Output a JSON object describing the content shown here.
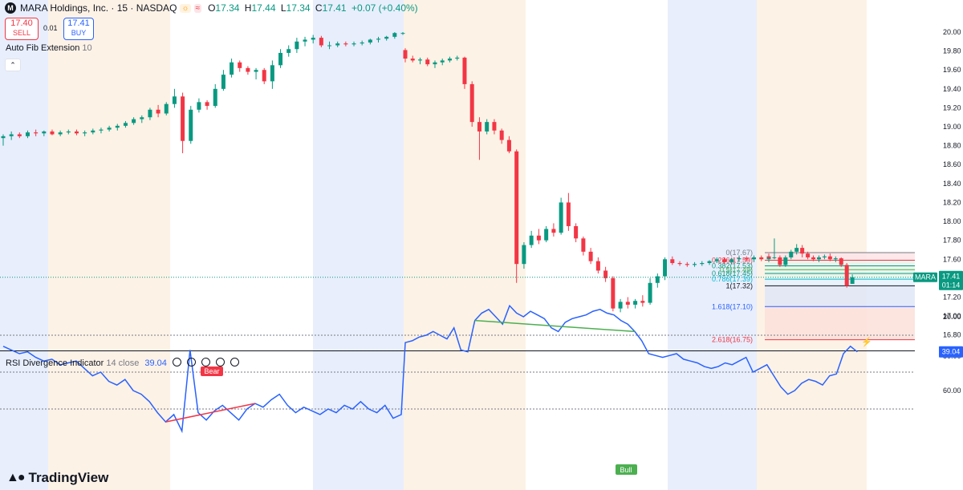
{
  "header": {
    "symbol_icon": "M",
    "symbol_title": "MARA Holdings, Inc. · 15 · NASDAQ",
    "icons": [
      "sun-icon",
      "wave-icon"
    ],
    "open_label": "O",
    "open": "17.34",
    "high_label": "H",
    "high": "17.44",
    "low_label": "L",
    "low": "17.34",
    "close_label": "C",
    "close": "17.41",
    "change": "+0.07 (+0.40%)"
  },
  "trade": {
    "sell_price": "17.40",
    "sell_label": "SELL",
    "spread": "0.01",
    "buy_price": "17.41",
    "buy_label": "BUY"
  },
  "indicators": {
    "fib_name": "Auto Fib Extension",
    "fib_param": "10",
    "rsi_name": "RSI Divergence Indicator",
    "rsi_params": "14 close",
    "rsi_value": "39.04"
  },
  "price_axis": [
    "20.00",
    "19.80",
    "19.60",
    "19.40",
    "19.20",
    "19.00",
    "18.80",
    "18.60",
    "18.40",
    "18.20",
    "18.00",
    "17.80",
    "17.60",
    "17.20",
    "17.00",
    "16.80"
  ],
  "rsi_axis": [
    "80.00",
    "60.00",
    "20.00"
  ],
  "price_tag": {
    "symbol": "MARA",
    "price": "17.41",
    "countdown": "01:14"
  },
  "rsi_tag": "39.04",
  "fib_labels": [
    "0(17.67)",
    "0.236(17.59)",
    "0.382(17.53)",
    "0.5(17.49)",
    "0.618(17.45)",
    "0.786(17.39)",
    "1(17.32)",
    "1.618(17.10)",
    "2.618(16.75)"
  ],
  "divergence": {
    "bear": "Bear",
    "bull": "Bull"
  },
  "branding": {
    "name": "TradingView"
  },
  "colors": {
    "up": "#089981",
    "down": "#f23645",
    "rsi_line": "#2962ff",
    "bull": "#4caf50",
    "bear": "#f23645"
  },
  "chart_data": {
    "type": "candlestick",
    "symbol": "MARA",
    "interval": "15",
    "ylim": [
      16.65,
      20.1
    ],
    "rsi_ylim": [
      10,
      86
    ],
    "candles": [
      [
        18.88,
        18.92,
        18.8,
        18.9
      ],
      [
        18.9,
        18.95,
        18.86,
        18.92
      ],
      [
        18.92,
        18.94,
        18.88,
        18.9
      ],
      [
        18.9,
        18.96,
        18.88,
        18.94
      ],
      [
        18.94,
        18.97,
        18.9,
        18.93
      ],
      [
        18.93,
        18.96,
        18.9,
        18.95
      ],
      [
        18.95,
        18.97,
        18.91,
        18.92
      ],
      [
        18.92,
        18.96,
        18.9,
        18.94
      ],
      [
        18.94,
        18.97,
        18.92,
        18.95
      ],
      [
        18.95,
        18.97,
        18.91,
        18.93
      ],
      [
        18.93,
        18.96,
        18.9,
        18.94
      ],
      [
        18.94,
        18.98,
        18.92,
        18.96
      ],
      [
        18.96,
        18.99,
        18.93,
        18.97
      ],
      [
        18.97,
        19.01,
        18.95,
        18.99
      ],
      [
        18.99,
        19.03,
        18.96,
        19.01
      ],
      [
        19.01,
        19.06,
        18.99,
        19.04
      ],
      [
        19.04,
        19.1,
        19.02,
        19.08
      ],
      [
        19.08,
        19.12,
        19.04,
        19.1
      ],
      [
        19.1,
        19.2,
        19.07,
        19.18
      ],
      [
        19.18,
        19.23,
        19.1,
        19.14
      ],
      [
        19.14,
        19.26,
        19.12,
        19.24
      ],
      [
        19.24,
        19.4,
        19.2,
        19.32
      ],
      [
        19.32,
        19.36,
        18.72,
        18.85
      ],
      [
        18.85,
        19.22,
        18.82,
        19.18
      ],
      [
        19.18,
        19.3,
        19.15,
        19.26
      ],
      [
        19.26,
        19.28,
        19.18,
        19.22
      ],
      [
        19.22,
        19.45,
        19.2,
        19.4
      ],
      [
        19.4,
        19.6,
        19.38,
        19.55
      ],
      [
        19.55,
        19.72,
        19.52,
        19.68
      ],
      [
        19.68,
        19.7,
        19.58,
        19.62
      ],
      [
        19.62,
        19.64,
        19.55,
        19.58
      ],
      [
        19.58,
        19.62,
        19.5,
        19.6
      ],
      [
        19.6,
        19.62,
        19.45,
        19.48
      ],
      [
        19.48,
        19.7,
        19.4,
        19.65
      ],
      [
        19.65,
        19.82,
        19.62,
        19.78
      ],
      [
        19.78,
        19.86,
        19.74,
        19.82
      ],
      [
        19.82,
        19.94,
        19.78,
        19.9
      ],
      [
        19.9,
        19.95,
        19.85,
        19.92
      ],
      [
        19.92,
        19.97,
        19.88,
        19.94
      ],
      [
        19.94,
        19.96,
        19.84,
        19.86
      ],
      [
        19.86,
        19.9,
        19.82,
        19.86
      ],
      [
        19.86,
        19.9,
        19.84,
        19.88
      ],
      [
        19.88,
        19.9,
        19.85,
        19.87
      ],
      [
        19.87,
        19.9,
        19.85,
        19.88
      ],
      [
        19.88,
        19.91,
        19.86,
        19.89
      ],
      [
        19.89,
        19.93,
        19.87,
        19.92
      ],
      [
        19.92,
        19.95,
        19.89,
        19.93
      ],
      [
        19.93,
        19.96,
        19.91,
        19.95
      ],
      [
        19.95,
        20.0,
        19.93,
        19.99
      ],
      [
        19.99,
        20.0,
        19.97,
        19.99
      ],
      [
        19.81,
        19.83,
        19.68,
        19.72
      ],
      [
        19.72,
        19.75,
        19.68,
        19.7
      ],
      [
        19.7,
        19.73,
        19.66,
        19.71
      ],
      [
        19.71,
        19.73,
        19.64,
        19.66
      ],
      [
        19.66,
        19.7,
        19.62,
        19.68
      ],
      [
        19.68,
        19.72,
        19.65,
        19.7
      ],
      [
        19.7,
        19.74,
        19.68,
        19.72
      ],
      [
        19.72,
        19.75,
        19.7,
        19.73
      ],
      [
        19.73,
        19.74,
        19.4,
        19.45
      ],
      [
        19.45,
        19.48,
        19.0,
        19.05
      ],
      [
        19.05,
        19.1,
        18.65,
        18.95
      ],
      [
        18.95,
        19.08,
        18.92,
        19.05
      ],
      [
        19.05,
        19.08,
        18.92,
        18.96
      ],
      [
        18.96,
        18.98,
        18.82,
        18.86
      ],
      [
        18.86,
        18.9,
        18.72,
        18.74
      ],
      [
        18.74,
        18.76,
        17.35,
        17.55
      ],
      [
        17.55,
        17.78,
        17.5,
        17.75
      ],
      [
        17.75,
        17.9,
        17.72,
        17.85
      ],
      [
        17.85,
        17.92,
        17.76,
        17.8
      ],
      [
        17.8,
        17.95,
        17.78,
        17.92
      ],
      [
        17.92,
        17.98,
        17.84,
        17.88
      ],
      [
        17.88,
        18.25,
        17.86,
        18.2
      ],
      [
        18.2,
        18.3,
        17.9,
        17.95
      ],
      [
        17.95,
        17.98,
        17.78,
        17.82
      ],
      [
        17.82,
        17.84,
        17.64,
        17.68
      ],
      [
        17.68,
        17.72,
        17.55,
        17.58
      ],
      [
        17.58,
        17.62,
        17.45,
        17.48
      ],
      [
        17.48,
        17.52,
        17.36,
        17.4
      ],
      [
        17.4,
        17.42,
        17.05,
        17.08
      ],
      [
        17.08,
        17.18,
        17.04,
        17.15
      ],
      [
        17.15,
        17.2,
        17.08,
        17.12
      ],
      [
        17.12,
        17.18,
        17.08,
        17.16
      ],
      [
        17.16,
        17.22,
        17.1,
        17.14
      ],
      [
        17.14,
        17.4,
        17.12,
        17.35
      ],
      [
        17.35,
        17.45,
        17.3,
        17.42
      ],
      [
        17.42,
        17.62,
        17.38,
        17.6
      ],
      [
        17.6,
        17.63,
        17.54,
        17.56
      ],
      [
        17.56,
        17.58,
        17.53,
        17.55
      ],
      [
        17.55,
        17.57,
        17.52,
        17.54
      ],
      [
        17.54,
        17.57,
        17.52,
        17.55
      ],
      [
        17.55,
        17.58,
        17.53,
        17.56
      ],
      [
        17.56,
        17.59,
        17.54,
        17.58
      ],
      [
        17.58,
        17.62,
        17.56,
        17.6
      ],
      [
        17.6,
        17.62,
        17.55,
        17.57
      ],
      [
        17.57,
        17.61,
        17.55,
        17.6
      ],
      [
        17.6,
        17.64,
        17.57,
        17.61
      ],
      [
        17.61,
        17.63,
        17.58,
        17.6
      ],
      [
        17.6,
        17.64,
        17.57,
        17.62
      ],
      [
        17.62,
        17.64,
        17.58,
        17.6
      ],
      [
        17.6,
        17.65,
        17.57,
        17.63
      ],
      [
        17.63,
        17.66,
        17.6,
        17.62
      ],
      [
        17.62,
        17.82,
        17.6,
        17.62
      ],
      [
        17.62,
        17.64,
        17.52,
        17.54
      ],
      [
        17.54,
        17.64,
        17.52,
        17.62
      ],
      [
        17.62,
        17.7,
        17.6,
        17.68
      ],
      [
        17.68,
        17.76,
        17.65,
        17.72
      ],
      [
        17.72,
        17.75,
        17.62,
        17.66
      ],
      [
        17.66,
        17.68,
        17.6,
        17.62
      ],
      [
        17.62,
        17.64,
        17.58,
        17.6
      ],
      [
        17.6,
        17.64,
        17.57,
        17.62
      ],
      [
        17.62,
        17.65,
        17.6,
        17.63
      ],
      [
        17.63,
        17.66,
        17.58,
        17.6
      ],
      [
        17.6,
        17.63,
        17.57,
        17.61
      ],
      [
        17.61,
        17.62,
        17.52,
        17.54
      ],
      [
        17.54,
        17.56,
        17.3,
        17.32
      ],
      [
        17.34,
        17.44,
        17.34,
        17.41
      ]
    ],
    "fib_extension": [
      {
        "level": "0",
        "price": 17.67
      },
      {
        "level": "0.236",
        "price": 17.59
      },
      {
        "level": "0.382",
        "price": 17.53
      },
      {
        "level": "0.5",
        "price": 17.49
      },
      {
        "level": "0.618",
        "price": 17.45
      },
      {
        "level": "0.786",
        "price": 17.39
      },
      {
        "level": "1",
        "price": 17.32
      },
      {
        "level": "1.618",
        "price": 17.1
      },
      {
        "level": "2.618",
        "price": 16.75
      }
    ],
    "rsi": [
      36,
      38,
      40,
      39,
      42,
      44,
      43,
      46,
      45,
      44,
      48,
      52,
      50,
      55,
      57,
      54,
      60,
      62,
      66,
      72,
      77,
      73,
      82,
      38,
      72,
      76,
      71,
      68,
      72,
      76,
      70,
      67,
      69,
      65,
      62,
      68,
      72,
      69,
      71,
      73,
      70,
      72,
      68,
      70,
      66,
      70,
      72,
      68,
      75,
      73,
      34,
      33,
      31,
      30,
      28,
      30,
      32,
      26,
      38,
      39,
      22,
      18,
      16,
      20,
      24,
      14,
      18,
      20,
      17,
      19,
      21,
      26,
      28,
      23,
      21,
      20,
      19,
      17,
      16,
      18,
      19,
      22,
      24,
      28,
      33,
      40,
      41,
      42,
      41,
      40,
      43,
      44,
      45,
      47,
      48,
      47,
      45,
      46,
      44,
      42,
      50,
      48,
      46,
      52,
      58,
      62,
      60,
      56,
      54,
      55,
      57,
      52,
      51,
      40,
      36,
      39
    ],
    "divergences": [
      {
        "type": "bear",
        "label": "Bear",
        "from_bar": 20,
        "to_bar": 31
      },
      {
        "type": "bull",
        "label": "Bull",
        "from_bar": 64,
        "to_bar": 83
      }
    ]
  }
}
